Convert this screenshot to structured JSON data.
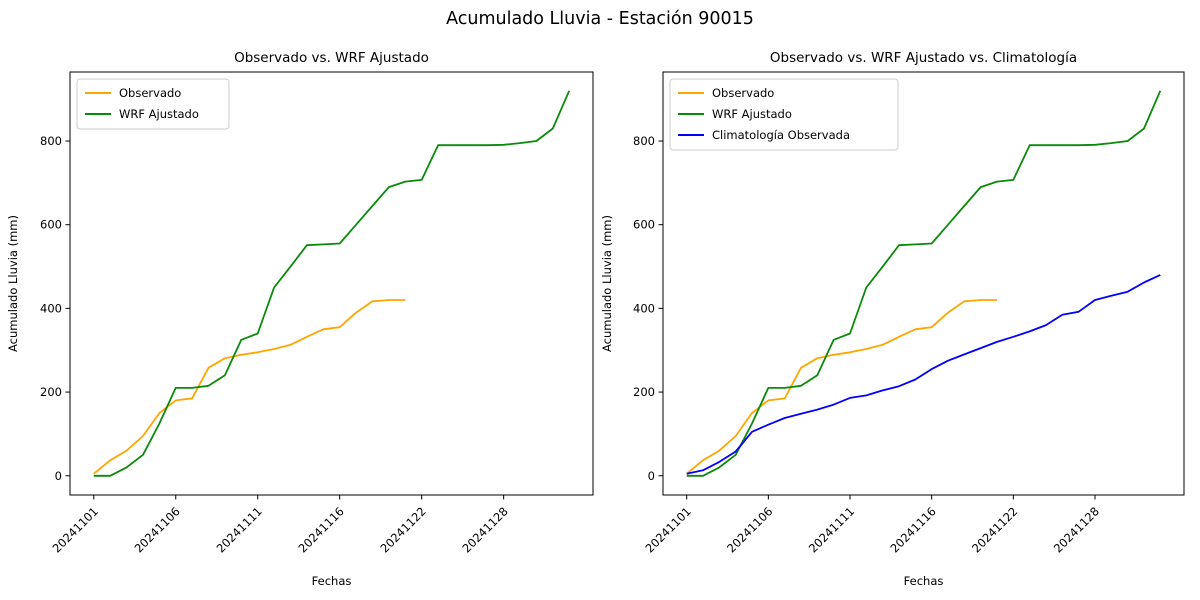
{
  "suptitle": "Acumulado Lluvia - Estación 90015",
  "colors": {
    "observado": "#FFA500",
    "wrf_ajustado": "#0a8a0a",
    "climatologia": "#0000FF"
  },
  "chart_data": [
    {
      "type": "line",
      "title": "Observado vs. WRF Ajustado",
      "xlabel": "Fechas",
      "ylabel": "Acumulado Lluvia (mm)",
      "legend_position": "upper left",
      "grid": false,
      "yticks": [
        0,
        200,
        400,
        600,
        800
      ],
      "ylim": [
        -46,
        965
      ],
      "xtick_labels": [
        "20241101",
        "20241106",
        "20241111",
        "20241116",
        "20241122",
        "20241128"
      ],
      "xtick_indices": [
        0,
        5,
        10,
        15,
        20,
        25
      ],
      "x_categories": [
        "20241101",
        "20241102",
        "20241103",
        "20241104",
        "20241105",
        "20241106",
        "20241107",
        "20241108",
        "20241109",
        "20241110",
        "20241111",
        "20241112",
        "20241113",
        "20241114",
        "20241115",
        "20241116",
        "20241118",
        "20241119",
        "20241120",
        "20241121",
        "20241122",
        "20241123",
        "20241124",
        "20241125",
        "20241126",
        "20241128",
        "20241129",
        "20241130",
        "20241201",
        "20241202"
      ],
      "series": [
        {
          "name": "Observado",
          "color": "#FFA500",
          "values": [
            5,
            37,
            60,
            95,
            150,
            180,
            185,
            258,
            281,
            289,
            295,
            303,
            313,
            332,
            350,
            355,
            390,
            417,
            420,
            420
          ]
        },
        {
          "name": "WRF Ajustado",
          "color": "#0a8a0a",
          "values": [
            0,
            0,
            20,
            50,
            125,
            210,
            210,
            215,
            240,
            325,
            340,
            450,
            500,
            551,
            553,
            555,
            600,
            645,
            690,
            703,
            707,
            790,
            790,
            790,
            790,
            791,
            795,
            800,
            830,
            920
          ]
        }
      ]
    },
    {
      "type": "line",
      "title": "Observado vs. WRF Ajustado vs. Climatología",
      "xlabel": "Fechas",
      "ylabel": "Acumulado Lluvia (mm)",
      "legend_position": "upper left",
      "grid": false,
      "yticks": [
        0,
        200,
        400,
        600,
        800
      ],
      "ylim": [
        -46,
        965
      ],
      "xtick_labels": [
        "20241101",
        "20241106",
        "20241111",
        "20241116",
        "20241122",
        "20241128"
      ],
      "xtick_indices": [
        0,
        5,
        10,
        15,
        20,
        25
      ],
      "x_categories": [
        "20241101",
        "20241102",
        "20241103",
        "20241104",
        "20241105",
        "20241106",
        "20241107",
        "20241108",
        "20241109",
        "20241110",
        "20241111",
        "20241112",
        "20241113",
        "20241114",
        "20241115",
        "20241116",
        "20241118",
        "20241119",
        "20241120",
        "20241121",
        "20241122",
        "20241123",
        "20241124",
        "20241125",
        "20241126",
        "20241128",
        "20241129",
        "20241130",
        "20241201",
        "20241202"
      ],
      "series": [
        {
          "name": "Observado",
          "color": "#FFA500",
          "values": [
            5,
            37,
            60,
            95,
            150,
            180,
            185,
            258,
            281,
            289,
            295,
            303,
            313,
            332,
            350,
            355,
            390,
            417,
            420,
            420
          ]
        },
        {
          "name": "WRF Ajustado",
          "color": "#0a8a0a",
          "values": [
            0,
            0,
            20,
            50,
            125,
            210,
            210,
            215,
            240,
            325,
            340,
            450,
            500,
            551,
            553,
            555,
            600,
            645,
            690,
            703,
            707,
            790,
            790,
            790,
            790,
            791,
            795,
            800,
            830,
            920
          ]
        },
        {
          "name": "Climatología Observada",
          "color": "#0000FF",
          "values": [
            5,
            13,
            33,
            58,
            105,
            122,
            138,
            148,
            158,
            170,
            186,
            192,
            204,
            214,
            230,
            255,
            275,
            290,
            305,
            320,
            332,
            345,
            360,
            385,
            392,
            420,
            430,
            440,
            462,
            480
          ]
        }
      ]
    }
  ]
}
